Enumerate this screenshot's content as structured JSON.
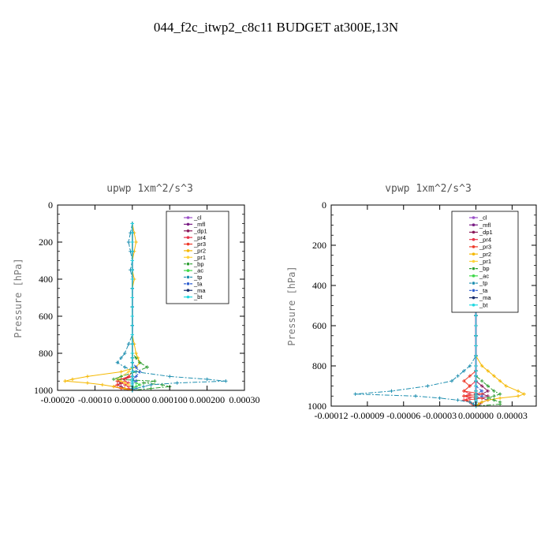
{
  "figure": {
    "title": "044_f2c_itwp2_c8c11  BUDGET at300E,13N"
  },
  "colors": {
    "cl": "#9b4fc9",
    "mfl": "#7a1e85",
    "dp1": "#8b1a5a",
    "pr4": "#e8344a",
    "pr3": "#ee3a2a",
    "pr2": "#f5b800",
    "pr1": "#ffd23a",
    "bp": "#2e9e32",
    "ac": "#3fd84a",
    "tp": "#1f8fb0",
    "ta": "#2f5fd0",
    "ma": "#1a2e6e",
    "bt": "#20d8e0"
  },
  "legend": [
    "_cl",
    "_mfl",
    "_dp1",
    "_pr4",
    "_pr3",
    "_pr2",
    "_pr1",
    "_bp",
    "_ac",
    "_tp",
    "_ta",
    "_ma",
    "_bt"
  ],
  "chart_data": [
    {
      "type": "line",
      "title": "upwp   1xm^2/s^3",
      "ylabel": "Pressure [hPa]",
      "xlim": [
        -0.0002,
        0.0003
      ],
      "ylim": [
        1000,
        0
      ],
      "y_inverted": true,
      "xticks": [
        "-0.00020",
        "-0.00010",
        "0.000000",
        "0.000100",
        "0.000200",
        "0.00030"
      ],
      "xtick_values": [
        -0.0002,
        -0.0001,
        0.0,
        0.0001,
        0.0002,
        0.0003
      ],
      "yticks": [
        0,
        200,
        400,
        600,
        800,
        1000
      ],
      "legend_position": "upper-right",
      "pressure": [
        100,
        150,
        200,
        250,
        300,
        350,
        400,
        450,
        500,
        550,
        600,
        650,
        700,
        750,
        800,
        825,
        850,
        875,
        900,
        925,
        940,
        950,
        960,
        970,
        980,
        990,
        1000
      ],
      "series": [
        {
          "name": "_cl",
          "key": "cl",
          "values": [
            0,
            0,
            0,
            0,
            0,
            0,
            0,
            0,
            0,
            0,
            0,
            0,
            0,
            0,
            0,
            0,
            0,
            0,
            0,
            0,
            0,
            0,
            0,
            0,
            0,
            0,
            0
          ]
        },
        {
          "name": "_mfl",
          "key": "mfl",
          "values": [
            0,
            0,
            0,
            0,
            0,
            0,
            0,
            0,
            0,
            0,
            0,
            0,
            0,
            0,
            0,
            0,
            0,
            0,
            0,
            0,
            0,
            0,
            0,
            0,
            0,
            0,
            0
          ]
        },
        {
          "name": "_dp1",
          "key": "dp1",
          "values": [
            0,
            0,
            0,
            0,
            0,
            0,
            0,
            0,
            0,
            0,
            0,
            0,
            0,
            0,
            0,
            0,
            0,
            0,
            0,
            0,
            -3e-05,
            -4e-05,
            -3e-05,
            -4e-05,
            -3e-05,
            -2e-05,
            0
          ]
        },
        {
          "name": "_pr4",
          "key": "pr4",
          "values": [
            0,
            0,
            0,
            0,
            0,
            0,
            0,
            0,
            0,
            0,
            0,
            0,
            0,
            0,
            0,
            0,
            0,
            0,
            0,
            0,
            -2e-05,
            -2e-05,
            -1e-05,
            -2e-05,
            -1e-05,
            -1e-05,
            0
          ]
        },
        {
          "name": "_pr3",
          "key": "pr3",
          "values": [
            0,
            0,
            0,
            0,
            0,
            0,
            0,
            0,
            0,
            0,
            0,
            0,
            0,
            0,
            0,
            0,
            0,
            0,
            0,
            -1e-05,
            -3e-05,
            -4e-05,
            -2e-05,
            -4e-05,
            -5e-05,
            -3e-05,
            0
          ]
        },
        {
          "name": "_pr2",
          "key": "pr2",
          "values": [
            0,
            5e-06,
            1e-05,
            5e-06,
            0,
            0,
            5e-06,
            0,
            0,
            0,
            0,
            0,
            0,
            5e-06,
            1e-05,
            1.5e-05,
            2e-05,
            1e-05,
            -3e-05,
            -0.00012,
            -0.00016,
            -0.00018,
            -0.00012,
            -8e-05,
            -5e-05,
            -2e-05,
            0
          ]
        },
        {
          "name": "_pr1",
          "key": "pr1",
          "values": [
            0,
            0,
            0,
            0,
            0,
            0,
            0,
            0,
            0,
            0,
            0,
            0,
            0,
            0,
            0,
            0,
            0,
            0,
            -1e-05,
            -3e-05,
            -4e-05,
            -3e-05,
            -2e-05,
            -1e-05,
            0,
            0,
            0
          ]
        },
        {
          "name": "_bp",
          "key": "bp",
          "values": [
            0,
            0,
            0,
            0,
            0,
            0,
            0,
            0,
            0,
            0,
            0,
            0,
            0,
            0,
            0,
            1e-05,
            2e-05,
            4e-05,
            1e-05,
            -3e-05,
            -5e-05,
            6e-05,
            3e-05,
            8e-05,
            0.0001,
            5e-05,
            0
          ]
        },
        {
          "name": "_ac",
          "key": "ac",
          "values": [
            0,
            0,
            0,
            0,
            0,
            0,
            0,
            0,
            0,
            0,
            0,
            0,
            0,
            0,
            0,
            0,
            0,
            0,
            0,
            0,
            0,
            1e-05,
            1e-05,
            2e-05,
            1e-05,
            0,
            0
          ]
        },
        {
          "name": "_tp",
          "key": "tp",
          "values": [
            0,
            -5e-06,
            -1e-05,
            -5e-06,
            0,
            -5e-06,
            0,
            0,
            0,
            0,
            0,
            0,
            0,
            -1e-05,
            -2e-05,
            -3e-05,
            -4e-05,
            -2e-05,
            1e-05,
            0.0001,
            0.0002,
            0.00025,
            0.00012,
            5e-05,
            3e-05,
            1e-05,
            0
          ]
        },
        {
          "name": "_ta",
          "key": "ta",
          "values": [
            0,
            0,
            0,
            0,
            0,
            0,
            0,
            0,
            0,
            0,
            0,
            0,
            0,
            0,
            0,
            0,
            0,
            1e-05,
            2e-05,
            1e-05,
            0,
            1e-05,
            0,
            0,
            0,
            0,
            0
          ]
        },
        {
          "name": "_ma",
          "key": "ma",
          "values": [
            0,
            0,
            0,
            0,
            0,
            0,
            0,
            0,
            0,
            0,
            0,
            0,
            0,
            0,
            0,
            0,
            0,
            0,
            0,
            0,
            0,
            0,
            0,
            0,
            0,
            0,
            0
          ]
        },
        {
          "name": "_bt",
          "key": "bt",
          "values": [
            0,
            0,
            0,
            0,
            0,
            0,
            0,
            0,
            0,
            0,
            0,
            0,
            0,
            0,
            0,
            0,
            0,
            0,
            0,
            0,
            0,
            0,
            0,
            0,
            0,
            0,
            0
          ]
        }
      ]
    },
    {
      "type": "line",
      "title": "vpwp   1xm^2/s^3",
      "ylabel": "Pressure [hPa]",
      "xlim": [
        -0.00012,
        5e-05
      ],
      "ylim": [
        1000,
        0
      ],
      "y_inverted": true,
      "xticks": [
        "-0.00012",
        "-0.00009",
        "-0.00006",
        "-0.00003",
        "0.000000",
        "0.00003"
      ],
      "xtick_values": [
        -0.00012,
        -9e-05,
        -6e-05,
        -3e-05,
        0.0,
        3e-05
      ],
      "yticks": [
        0,
        200,
        400,
        600,
        800,
        1000
      ],
      "legend_position": "upper-right",
      "pressure": [
        100,
        150,
        200,
        250,
        300,
        350,
        400,
        450,
        500,
        550,
        600,
        650,
        700,
        750,
        800,
        825,
        850,
        875,
        900,
        925,
        940,
        950,
        960,
        970,
        980,
        990,
        1000
      ],
      "series": [
        {
          "name": "_cl",
          "key": "cl",
          "values": [
            0,
            0,
            0,
            0,
            0,
            0,
            0,
            0,
            0,
            0,
            0,
            0,
            0,
            0,
            0,
            0,
            0,
            0,
            0,
            0,
            0,
            0,
            0,
            0,
            0,
            0,
            0
          ]
        },
        {
          "name": "_mfl",
          "key": "mfl",
          "values": [
            0,
            0,
            0,
            0,
            0,
            0,
            0,
            0,
            0,
            0,
            0,
            0,
            0,
            0,
            0,
            0,
            0,
            0,
            0,
            0,
            0,
            0,
            0,
            0,
            0,
            0,
            0
          ]
        },
        {
          "name": "_dp1",
          "key": "dp1",
          "values": [
            0,
            0,
            0,
            0,
            0,
            0,
            0,
            0,
            0,
            0,
            0,
            0,
            0,
            0,
            0,
            0,
            0,
            0,
            5e-06,
            1e-05,
            5e-06,
            1e-05,
            5e-06,
            1e-05,
            5e-06,
            3e-06,
            0
          ]
        },
        {
          "name": "_pr4",
          "key": "pr4",
          "values": [
            0,
            0,
            0,
            0,
            0,
            0,
            0,
            0,
            0,
            0,
            0,
            0,
            0,
            0,
            0,
            0,
            0,
            0,
            -5e-06,
            -1e-05,
            -5e-06,
            -1e-05,
            -5e-06,
            -1e-05,
            -5e-06,
            -3e-06,
            0
          ]
        },
        {
          "name": "_pr3",
          "key": "pr3",
          "values": [
            0,
            0,
            0,
            0,
            0,
            0,
            0,
            0,
            0,
            0,
            0,
            0,
            0,
            0,
            0,
            0,
            -5e-06,
            -1e-05,
            -5e-06,
            -1e-05,
            5e-06,
            -1e-05,
            5e-06,
            -8e-06,
            -5e-06,
            -3e-06,
            0
          ]
        },
        {
          "name": "_pr2",
          "key": "pr2",
          "values": [
            0,
            -5e-06,
            -1e-05,
            -5e-06,
            0,
            0,
            0,
            0,
            0,
            0,
            0,
            0,
            0,
            0,
            5e-06,
            1e-05,
            1.5e-05,
            2e-05,
            2.5e-05,
            3.5e-05,
            4e-05,
            3.5e-05,
            2e-05,
            1e-05,
            5e-06,
            2e-06,
            0
          ]
        },
        {
          "name": "_pr1",
          "key": "pr1",
          "values": [
            0,
            0,
            -5e-06,
            -1e-05,
            -5e-06,
            0,
            0,
            0,
            0,
            0,
            0,
            0,
            0,
            0,
            0,
            0,
            0,
            0,
            0,
            0,
            0,
            0,
            0,
            0,
            0,
            0,
            0
          ]
        },
        {
          "name": "_bp",
          "key": "bp",
          "values": [
            0,
            0,
            0,
            0,
            0,
            0,
            0,
            0,
            0,
            0,
            0,
            0,
            0,
            0,
            0,
            0,
            0,
            5e-06,
            1e-05,
            1.5e-05,
            2e-05,
            1.5e-05,
            1e-05,
            1.5e-05,
            2e-05,
            2e-05,
            0
          ]
        },
        {
          "name": "_ac",
          "key": "ac",
          "values": [
            0,
            0,
            0,
            0,
            0,
            0,
            0,
            0,
            0,
            0,
            0,
            0,
            0,
            0,
            0,
            0,
            0,
            0,
            0,
            0,
            0,
            0,
            0,
            0,
            0,
            0,
            0
          ]
        },
        {
          "name": "_tp",
          "key": "tp",
          "values": [
            0,
            0,
            -5e-06,
            -1e-05,
            -1.5e-05,
            -1e-05,
            -5e-06,
            0,
            0,
            0,
            0,
            0,
            0,
            0,
            -5e-06,
            -1e-05,
            -1.5e-05,
            -2e-05,
            -4e-05,
            -7e-05,
            -0.0001,
            -5e-05,
            -3e-05,
            -1.5e-05,
            -5e-06,
            -2e-06,
            0
          ]
        },
        {
          "name": "_ta",
          "key": "ta",
          "values": [
            0,
            0,
            0,
            0,
            0,
            0,
            0,
            0,
            0,
            0,
            0,
            0,
            0,
            0,
            0,
            0,
            0,
            0,
            0,
            5e-06,
            0,
            5e-06,
            0,
            0,
            0,
            0,
            0
          ]
        },
        {
          "name": "_ma",
          "key": "ma",
          "values": [
            0,
            0,
            0,
            0,
            0,
            0,
            0,
            0,
            0,
            0,
            0,
            0,
            0,
            0,
            0,
            0,
            0,
            0,
            0,
            0,
            0,
            0,
            0,
            0,
            0,
            0,
            0
          ]
        },
        {
          "name": "_bt",
          "key": "bt",
          "values": [
            0,
            0,
            0,
            0,
            0,
            0,
            0,
            0,
            0,
            0,
            0,
            0,
            0,
            0,
            0,
            0,
            0,
            0,
            0,
            0,
            0,
            0,
            0,
            0,
            0,
            0,
            0
          ]
        }
      ]
    }
  ]
}
